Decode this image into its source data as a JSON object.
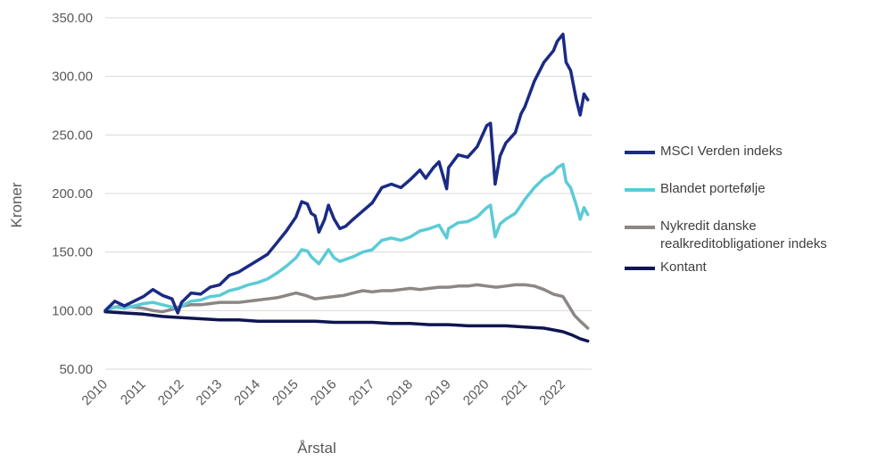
{
  "chart_data": {
    "type": "line",
    "xlabel": "Årstal",
    "ylabel": "Kroner",
    "xlim": [
      2010,
      2022.75
    ],
    "ylim": [
      50,
      350
    ],
    "yticks": [
      "50.00",
      "100.00",
      "150.00",
      "200.00",
      "250.00",
      "300.00",
      "350.00"
    ],
    "xticks": [
      "2010",
      "2011",
      "2012",
      "2013",
      "2014",
      "2015",
      "2016",
      "2017",
      "2018",
      "2019",
      "2020",
      "2021",
      "2022"
    ],
    "grid": "horizontal",
    "legend_position": "right",
    "series": [
      {
        "name": "MSCI Verden indeks",
        "color": "#1B2A84",
        "points": [
          [
            2010,
            100
          ],
          [
            2010.25,
            108
          ],
          [
            2010.5,
            104
          ],
          [
            2010.75,
            108
          ],
          [
            2011,
            112
          ],
          [
            2011.25,
            118
          ],
          [
            2011.5,
            113
          ],
          [
            2011.75,
            110
          ],
          [
            2011.9,
            98
          ],
          [
            2012,
            107
          ],
          [
            2012.25,
            115
          ],
          [
            2012.5,
            114
          ],
          [
            2012.75,
            120
          ],
          [
            2013,
            122
          ],
          [
            2013.25,
            130
          ],
          [
            2013.5,
            133
          ],
          [
            2013.75,
            138
          ],
          [
            2014,
            143
          ],
          [
            2014.25,
            148
          ],
          [
            2014.5,
            158
          ],
          [
            2014.75,
            168
          ],
          [
            2015,
            180
          ],
          [
            2015.15,
            193
          ],
          [
            2015.3,
            191
          ],
          [
            2015.4,
            183
          ],
          [
            2015.5,
            181
          ],
          [
            2015.6,
            167
          ],
          [
            2015.75,
            178
          ],
          [
            2015.85,
            190
          ],
          [
            2016,
            178
          ],
          [
            2016.15,
            170
          ],
          [
            2016.3,
            172
          ],
          [
            2016.5,
            178
          ],
          [
            2016.75,
            185
          ],
          [
            2017,
            192
          ],
          [
            2017.25,
            205
          ],
          [
            2017.5,
            208
          ],
          [
            2017.75,
            205
          ],
          [
            2018,
            212
          ],
          [
            2018.25,
            220
          ],
          [
            2018.4,
            213
          ],
          [
            2018.6,
            222
          ],
          [
            2018.75,
            227
          ],
          [
            2018.95,
            204
          ],
          [
            2019,
            222
          ],
          [
            2019.25,
            233
          ],
          [
            2019.5,
            231
          ],
          [
            2019.75,
            240
          ],
          [
            2020,
            258
          ],
          [
            2020.1,
            260
          ],
          [
            2020.22,
            208
          ],
          [
            2020.35,
            232
          ],
          [
            2020.5,
            243
          ],
          [
            2020.75,
            252
          ],
          [
            2020.9,
            268
          ],
          [
            2021,
            274
          ],
          [
            2021.25,
            296
          ],
          [
            2021.5,
            312
          ],
          [
            2021.75,
            322
          ],
          [
            2021.85,
            330
          ],
          [
            2022,
            336
          ],
          [
            2022.08,
            312
          ],
          [
            2022.2,
            305
          ],
          [
            2022.35,
            280
          ],
          [
            2022.45,
            267
          ],
          [
            2022.55,
            285
          ],
          [
            2022.65,
            280
          ]
        ]
      },
      {
        "name": "Blandet portefølje",
        "color": "#5BCBD6",
        "points": [
          [
            2010,
            100
          ],
          [
            2010.25,
            103
          ],
          [
            2010.5,
            102
          ],
          [
            2010.75,
            104
          ],
          [
            2011,
            106
          ],
          [
            2011.25,
            107
          ],
          [
            2011.5,
            105
          ],
          [
            2011.75,
            103
          ],
          [
            2011.9,
            101
          ],
          [
            2012,
            104
          ],
          [
            2012.25,
            108
          ],
          [
            2012.5,
            109
          ],
          [
            2012.75,
            112
          ],
          [
            2013,
            113
          ],
          [
            2013.25,
            117
          ],
          [
            2013.5,
            119
          ],
          [
            2013.75,
            122
          ],
          [
            2014,
            124
          ],
          [
            2014.25,
            127
          ],
          [
            2014.5,
            132
          ],
          [
            2014.75,
            138
          ],
          [
            2015,
            145
          ],
          [
            2015.15,
            152
          ],
          [
            2015.3,
            151
          ],
          [
            2015.4,
            146
          ],
          [
            2015.6,
            140
          ],
          [
            2015.85,
            152
          ],
          [
            2016,
            145
          ],
          [
            2016.15,
            142
          ],
          [
            2016.5,
            146
          ],
          [
            2016.75,
            150
          ],
          [
            2017,
            152
          ],
          [
            2017.25,
            160
          ],
          [
            2017.5,
            162
          ],
          [
            2017.75,
            160
          ],
          [
            2018,
            163
          ],
          [
            2018.25,
            168
          ],
          [
            2018.5,
            170
          ],
          [
            2018.75,
            173
          ],
          [
            2018.95,
            162
          ],
          [
            2019,
            170
          ],
          [
            2019.25,
            175
          ],
          [
            2019.5,
            176
          ],
          [
            2019.75,
            180
          ],
          [
            2020,
            188
          ],
          [
            2020.1,
            190
          ],
          [
            2020.22,
            163
          ],
          [
            2020.35,
            174
          ],
          [
            2020.5,
            178
          ],
          [
            2020.75,
            183
          ],
          [
            2020.9,
            190
          ],
          [
            2021,
            195
          ],
          [
            2021.25,
            205
          ],
          [
            2021.5,
            213
          ],
          [
            2021.75,
            218
          ],
          [
            2021.85,
            222
          ],
          [
            2022,
            225
          ],
          [
            2022.08,
            210
          ],
          [
            2022.2,
            205
          ],
          [
            2022.35,
            190
          ],
          [
            2022.45,
            178
          ],
          [
            2022.55,
            188
          ],
          [
            2022.65,
            182
          ]
        ]
      },
      {
        "name": "Nykredit danske realkreditobligationer indeks",
        "color": "#8C8785",
        "points": [
          [
            2010,
            100
          ],
          [
            2010.25,
            103
          ],
          [
            2010.5,
            104
          ],
          [
            2010.75,
            103
          ],
          [
            2011,
            102
          ],
          [
            2011.25,
            100
          ],
          [
            2011.5,
            99
          ],
          [
            2011.75,
            101
          ],
          [
            2012,
            104
          ],
          [
            2012.25,
            105
          ],
          [
            2012.5,
            105
          ],
          [
            2012.75,
            106
          ],
          [
            2013,
            107
          ],
          [
            2013.25,
            107
          ],
          [
            2013.5,
            107
          ],
          [
            2013.75,
            108
          ],
          [
            2014,
            109
          ],
          [
            2014.25,
            110
          ],
          [
            2014.5,
            111
          ],
          [
            2014.75,
            113
          ],
          [
            2015,
            115
          ],
          [
            2015.25,
            113
          ],
          [
            2015.5,
            110
          ],
          [
            2015.75,
            111
          ],
          [
            2016,
            112
          ],
          [
            2016.25,
            113
          ],
          [
            2016.5,
            115
          ],
          [
            2016.75,
            117
          ],
          [
            2017,
            116
          ],
          [
            2017.25,
            117
          ],
          [
            2017.5,
            117
          ],
          [
            2017.75,
            118
          ],
          [
            2018,
            119
          ],
          [
            2018.25,
            118
          ],
          [
            2018.5,
            119
          ],
          [
            2018.75,
            120
          ],
          [
            2019,
            120
          ],
          [
            2019.25,
            121
          ],
          [
            2019.5,
            121
          ],
          [
            2019.75,
            122
          ],
          [
            2020,
            121
          ],
          [
            2020.25,
            120
          ],
          [
            2020.5,
            121
          ],
          [
            2020.75,
            122
          ],
          [
            2021,
            122
          ],
          [
            2021.25,
            121
          ],
          [
            2021.5,
            118
          ],
          [
            2021.75,
            114
          ],
          [
            2022,
            112
          ],
          [
            2022.15,
            104
          ],
          [
            2022.3,
            96
          ],
          [
            2022.45,
            91
          ],
          [
            2022.55,
            88
          ],
          [
            2022.65,
            85
          ]
        ]
      },
      {
        "name": "Kontant",
        "color": "#0F1550",
        "points": [
          [
            2010,
            99
          ],
          [
            2010.5,
            98
          ],
          [
            2011,
            97
          ],
          [
            2011.5,
            95
          ],
          [
            2012,
            94
          ],
          [
            2012.5,
            93
          ],
          [
            2013,
            92
          ],
          [
            2013.5,
            92
          ],
          [
            2014,
            91
          ],
          [
            2014.5,
            91
          ],
          [
            2015,
            91
          ],
          [
            2015.5,
            91
          ],
          [
            2016,
            90
          ],
          [
            2016.5,
            90
          ],
          [
            2017,
            90
          ],
          [
            2017.5,
            89
          ],
          [
            2018,
            89
          ],
          [
            2018.5,
            88
          ],
          [
            2019,
            88
          ],
          [
            2019.5,
            87
          ],
          [
            2020,
            87
          ],
          [
            2020.5,
            87
          ],
          [
            2021,
            86
          ],
          [
            2021.5,
            85
          ],
          [
            2022,
            82
          ],
          [
            2022.25,
            79
          ],
          [
            2022.45,
            76
          ],
          [
            2022.65,
            74
          ]
        ]
      }
    ]
  }
}
